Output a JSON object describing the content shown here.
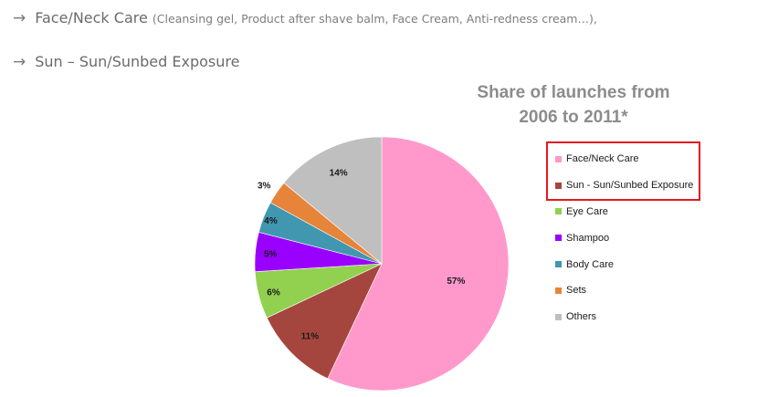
{
  "bullets": [
    {
      "arrow": "→",
      "text": "Face/Neck Care",
      "detail": "(Cleansing gel, Product after shave balm, Face Cream, Anti-redness cream…),"
    },
    {
      "arrow": "→",
      "text": "Sun – Sun/Sunbed Exposure",
      "detail": ""
    }
  ],
  "chart_data": {
    "type": "pie",
    "title": "Share of launches from 2006 to 2011*",
    "title_lines": [
      "Share of launches from",
      "2006 to 2011*"
    ],
    "categories": [
      "Face/Neck Care",
      "Sun - Sun/Sunbed Exposure",
      "Eye Care",
      "Shampoo",
      "Body Care",
      "Sets",
      "Others"
    ],
    "values": [
      57,
      11,
      6,
      5,
      4,
      3,
      14
    ],
    "labels": [
      "57%",
      "11%",
      "6%",
      "5%",
      "4%",
      "3%",
      "14%"
    ],
    "colors": [
      "#ff99cc",
      "#a5463e",
      "#92d050",
      "#9900ff",
      "#4197b0",
      "#e6843a",
      "#bfbfbf"
    ],
    "legend_position": "right",
    "highlighted_categories": [
      "Face/Neck Care",
      "Sun - Sun/Sunbed Exposure"
    ]
  }
}
